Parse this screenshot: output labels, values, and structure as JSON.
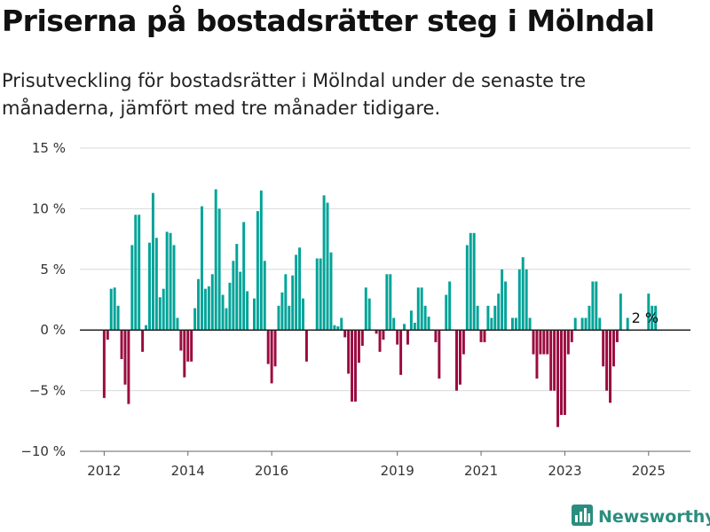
{
  "title": "Priserna på bostadsrätter steg i Mölndal",
  "subtitle": "Prisutveckling för bostadsrätter i Mölndal under de senaste tre månaderna, jämfört med tre månader tidigare.",
  "brand": {
    "name": "Newsworthy",
    "icon": "newsworthy-logo-icon"
  },
  "colors": {
    "positive": "#00a398",
    "negative": "#9b0a3e",
    "grid": "#d9d9d9",
    "zero_line": "#222222"
  },
  "chart_data": {
    "type": "bar",
    "title": "",
    "xlabel": "",
    "ylabel": "",
    "ylim": [
      -10,
      15
    ],
    "yticks": [
      -10,
      -5,
      0,
      5,
      10,
      15
    ],
    "ytick_labels": [
      "−10 %",
      "−5 %",
      "0 %",
      "5 %",
      "10 %",
      "15 %"
    ],
    "xtick_labels": [
      "2012",
      "2014",
      "2016",
      "2019",
      "2021",
      "2023",
      "2025"
    ],
    "xtick_positions": [
      2012.0,
      2014.0,
      2016.0,
      2019.0,
      2021.0,
      2023.0,
      2025.0
    ],
    "grid": "horizontal",
    "annotation": {
      "text": "2 %",
      "at_index": 155
    },
    "x_start": 2012.0,
    "x_step": 0.08333,
    "values": [
      -5.6,
      -0.8,
      3.4,
      3.5,
      2.0,
      -2.4,
      -4.5,
      -6.1,
      7.0,
      9.5,
      9.5,
      -1.8,
      0.4,
      7.2,
      11.3,
      7.6,
      2.7,
      3.4,
      8.1,
      8.0,
      7.0,
      1.0,
      -1.7,
      -3.9,
      -2.6,
      -2.6,
      1.8,
      4.2,
      10.2,
      3.4,
      3.6,
      4.6,
      11.6,
      10.0,
      2.9,
      1.8,
      3.9,
      5.7,
      7.1,
      4.8,
      8.9,
      3.2,
      0.0,
      2.6,
      9.8,
      11.5,
      5.7,
      -2.8,
      -4.4,
      -3.0,
      2.0,
      3.1,
      4.6,
      2.0,
      4.5,
      6.2,
      6.8,
      2.6,
      -2.6,
      0.0,
      0.0,
      5.9,
      5.9,
      11.1,
      10.5,
      6.4,
      0.4,
      0.3,
      1.0,
      -0.6,
      -3.6,
      -5.9,
      -5.9,
      -2.7,
      -1.3,
      3.5,
      2.6,
      0.0,
      -0.3,
      -1.8,
      -0.8,
      4.6,
      4.6,
      1.0,
      -1.2,
      -3.7,
      0.5,
      -1.2,
      1.6,
      0.6,
      3.5,
      3.5,
      2.0,
      1.1,
      0.0,
      -1.0,
      -4.0,
      0.0,
      2.9,
      4.0,
      0.0,
      -5.0,
      -4.5,
      -2.0,
      7.0,
      8.0,
      8.0,
      2.0,
      -1.0,
      -1.0,
      2.0,
      1.0,
      2.0,
      3.0,
      5.0,
      4.0,
      0.0,
      1.0,
      1.0,
      5.0,
      6.0,
      5.0,
      1.0,
      -2.0,
      -4.0,
      -2.0,
      -2.0,
      -2.0,
      -5.0,
      -5.0,
      -8.0,
      -7.0,
      -7.0,
      -2.0,
      -1.0,
      1.0,
      0.0,
      1.0,
      1.0,
      2.0,
      4.0,
      4.0,
      1.0,
      -3.0,
      -5.0,
      -6.0,
      -3.0,
      -1.0,
      3.0,
      0.0,
      1.0,
      0.0,
      0.0,
      0.0,
      0.0,
      0.0,
      3.0,
      2.0,
      2.0
    ]
  }
}
